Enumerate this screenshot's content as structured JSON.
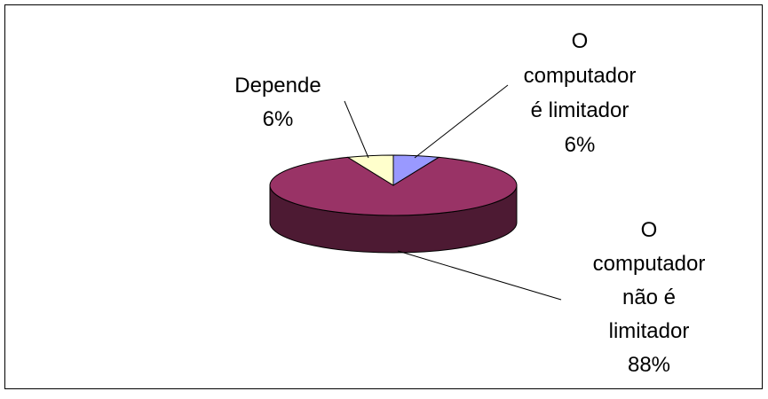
{
  "chart_data": {
    "type": "pie",
    "style": "3d",
    "legend": "none",
    "categories": [
      "O computador é limitador",
      "O computador não é limitador",
      "Depende"
    ],
    "values": [
      6,
      88,
      6
    ],
    "slices": [
      {
        "label_lines": [
          "O",
          "computador",
          "é limitador"
        ],
        "percent_label": "6%",
        "value": 6,
        "color": "#9999ff",
        "side_color": "#4d4d80"
      },
      {
        "label_lines": [
          "O",
          "computador",
          "não é",
          "limitador"
        ],
        "percent_label": "88%",
        "value": 88,
        "color": "#993366",
        "side_color": "#4d1a33"
      },
      {
        "label_lines": [
          "Depende"
        ],
        "percent_label": "6%",
        "value": 6,
        "color": "#ffffcc",
        "side_color": "#808066"
      }
    ]
  }
}
